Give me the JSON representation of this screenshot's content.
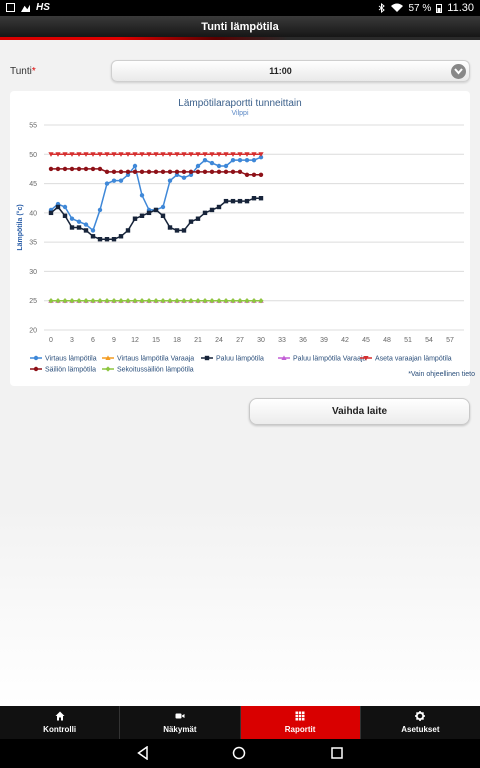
{
  "statusbar": {
    "left_text": "HS",
    "battery": "57 %",
    "time": "11.30"
  },
  "header": {
    "title": "Tunti lämpötila"
  },
  "form": {
    "label": "Tunti",
    "required_mark": "*",
    "selected_value": "11:00"
  },
  "chart_data": {
    "type": "line",
    "title": "Lämpötilaraportti tunneittain",
    "subtitle": "Vilppi",
    "ylabel": "Lämpötila (°c)",
    "xlabel": "",
    "ylim": [
      20,
      55
    ],
    "xlim": [
      -1,
      59
    ],
    "yticks": [
      20,
      25,
      30,
      35,
      40,
      45,
      50,
      55
    ],
    "xticks": [
      0,
      3,
      6,
      9,
      12,
      15,
      18,
      21,
      24,
      27,
      30,
      33,
      36,
      39,
      42,
      45,
      48,
      51,
      54,
      57
    ],
    "grid": true,
    "legend_position": "bottom",
    "x": [
      0,
      1,
      2,
      3,
      4,
      5,
      6,
      7,
      8,
      9,
      10,
      11,
      12,
      13,
      14,
      15,
      16,
      17,
      18,
      19,
      20,
      21,
      22,
      23,
      24,
      25,
      26,
      27,
      28,
      29,
      30
    ],
    "series": [
      {
        "name": "Virtaus lämpötila",
        "color": "#3f88d8",
        "marker": "circle",
        "values": [
          40.5,
          41.5,
          41,
          39,
          38.5,
          38,
          37,
          40.5,
          45,
          45.5,
          45.5,
          46.5,
          48,
          43,
          40.5,
          40.5,
          41,
          45.5,
          46.5,
          46,
          46.5,
          48,
          49,
          48.5,
          48,
          48,
          49,
          49,
          49,
          49,
          49.5
        ]
      },
      {
        "name": "Virtaus lämpötila Varaaja",
        "color": "#f39c22",
        "marker": "triangle",
        "values": [
          25,
          25,
          25,
          25,
          25,
          25,
          25,
          25,
          25,
          25,
          25,
          25,
          25,
          25,
          25,
          25,
          25,
          25,
          25,
          25,
          25,
          25,
          25,
          25,
          25,
          25,
          25,
          25,
          25,
          25,
          25
        ]
      },
      {
        "name": "Paluu lämpötila",
        "color": "#17243a",
        "marker": "square",
        "values": [
          40,
          41,
          39.5,
          37.5,
          37.5,
          37,
          36,
          35.5,
          35.5,
          35.5,
          36,
          37,
          39,
          39.5,
          40,
          40.5,
          39.5,
          37.5,
          37,
          37,
          38.5,
          39,
          40,
          40.5,
          41,
          42,
          42,
          42,
          42,
          42.5,
          42.5
        ]
      },
      {
        "name": "Paluu lämpötila Varaaja",
        "color": "#c35fd6",
        "marker": "triangle",
        "values": [
          25,
          25,
          25,
          25,
          25,
          25,
          25,
          25,
          25,
          25,
          25,
          25,
          25,
          25,
          25,
          25,
          25,
          25,
          25,
          25,
          25,
          25,
          25,
          25,
          25,
          25,
          25,
          25,
          25,
          25,
          25
        ]
      },
      {
        "name": "Aseta varaajan lämpötila",
        "color": "#d62f2f",
        "marker": "triangle-down",
        "values": [
          50,
          50,
          50,
          50,
          50,
          50,
          50,
          50,
          50,
          50,
          50,
          50,
          50,
          50,
          50,
          50,
          50,
          50,
          50,
          50,
          50,
          50,
          50,
          50,
          50,
          50,
          50,
          50,
          50,
          50,
          50
        ]
      },
      {
        "name": "Säiliön lämpötila",
        "color": "#8e1118",
        "marker": "circle",
        "values": [
          47.5,
          47.5,
          47.5,
          47.5,
          47.5,
          47.5,
          47.5,
          47.5,
          47,
          47,
          47,
          47,
          47,
          47,
          47,
          47,
          47,
          47,
          47,
          47,
          47,
          47,
          47,
          47,
          47,
          47,
          47,
          47,
          46.5,
          46.5,
          46.5
        ]
      },
      {
        "name": "Sekoitussäiliön lämpötila",
        "color": "#8dc63f",
        "marker": "diamond",
        "values": [
          25,
          25,
          25,
          25,
          25,
          25,
          25,
          25,
          25,
          25,
          25,
          25,
          25,
          25,
          25,
          25,
          25,
          25,
          25,
          25,
          25,
          25,
          25,
          25,
          25,
          25,
          25,
          25,
          25,
          25,
          25
        ]
      }
    ]
  },
  "note": "*Vain ohjeellinen tieto",
  "switch_button": "Vaihda laite",
  "tabs": [
    {
      "label": "Kontrolli",
      "icon": "home-icon",
      "active": false
    },
    {
      "label": "Näkymät",
      "icon": "video-camera-icon",
      "active": false
    },
    {
      "label": "Raportit",
      "icon": "grid-icon",
      "active": true
    },
    {
      "label": "Asetukset",
      "icon": "gear-icon",
      "active": false
    }
  ],
  "colors": {
    "accent": "#d90000",
    "header_bg": "#1a1a1a"
  }
}
